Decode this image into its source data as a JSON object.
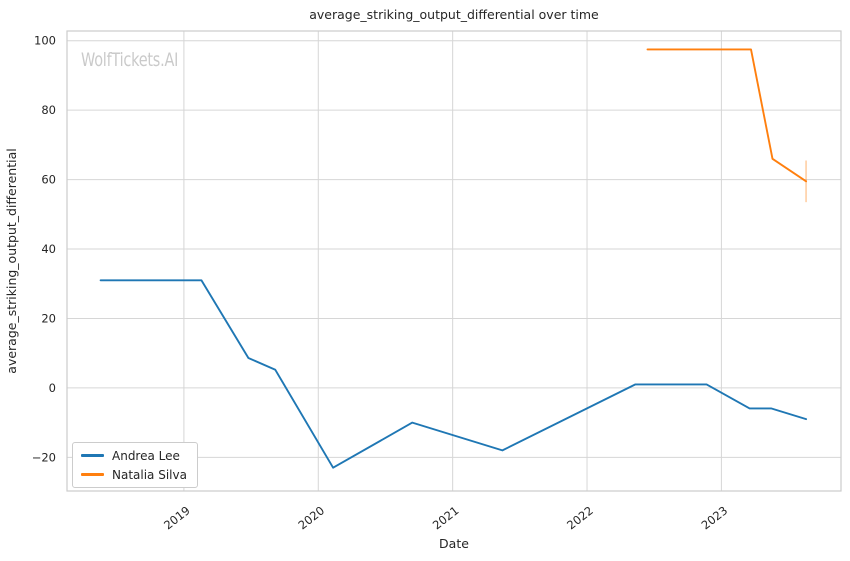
{
  "watermark": "WolfTickets.AI",
  "chart_data": {
    "type": "line",
    "title": "average_striking_output_differential over time",
    "xlabel": "Date",
    "ylabel": "average_striking_output_differential",
    "grid": true,
    "legend_position": "lower left",
    "x_ticks": [
      2019,
      2020,
      2021,
      2022,
      2023
    ],
    "y_ticks": [
      -20,
      0,
      20,
      40,
      60,
      80,
      100
    ],
    "xlim": [
      2018.13,
      2023.89
    ],
    "ylim": [
      -29.7,
      102.8
    ],
    "colors": {
      "grid": "#d6d6d6",
      "spine": "#cccccc",
      "text": "#262626",
      "watermark": "#cacaca"
    },
    "series": [
      {
        "name": "Andrea Lee",
        "color": "#1f77b4",
        "points": [
          {
            "x": 2018.38,
            "date": "2018-05",
            "y": 31
          },
          {
            "x": 2019.13,
            "date": "2019-02",
            "y": 31
          },
          {
            "x": 2019.48,
            "date": "2019-06",
            "y": 8.6
          },
          {
            "x": 2019.68,
            "date": "2019-09",
            "y": 5.2
          },
          {
            "x": 2020.11,
            "date": "2020-02",
            "y": -23
          },
          {
            "x": 2020.7,
            "date": "2020-09",
            "y": -10
          },
          {
            "x": 2021.37,
            "date": "2021-05",
            "y": -18
          },
          {
            "x": 2022.36,
            "date": "2022-05",
            "y": 1
          },
          {
            "x": 2022.89,
            "date": "2022-11",
            "y": 1
          },
          {
            "x": 2023.21,
            "date": "2023-03",
            "y": -5.9
          },
          {
            "x": 2023.37,
            "date": "2023-05",
            "y": -5.9
          },
          {
            "x": 2023.63,
            "date": "2023-08",
            "y": -9
          }
        ]
      },
      {
        "name": "Natalia Silva",
        "color": "#ff7f0e",
        "points": [
          {
            "x": 2022.45,
            "date": "2022-06",
            "y": 97.5
          },
          {
            "x": 2023.22,
            "date": "2023-03",
            "y": 97.5
          },
          {
            "x": 2023.38,
            "date": "2023-05",
            "y": 66
          },
          {
            "x": 2023.63,
            "date": "2023-08",
            "y": 59.5
          }
        ],
        "error_bar": {
          "x": 2023.63,
          "y_low": 53.5,
          "y_high": 65.5
        }
      }
    ]
  }
}
